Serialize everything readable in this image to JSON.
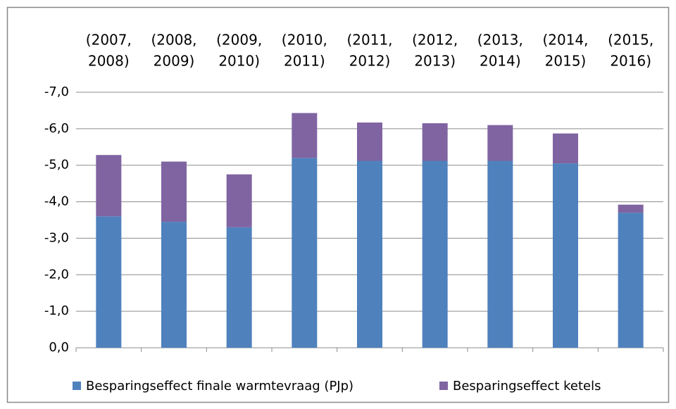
{
  "chart_data": {
    "type": "stacked-bar",
    "categories": [
      [
        "(2007,",
        "2008)"
      ],
      [
        "(2008,",
        "2009)"
      ],
      [
        "(2009,",
        "2010)"
      ],
      [
        "(2010,",
        "2011)"
      ],
      [
        "(2011,",
        "2012)"
      ],
      [
        "(2012,",
        "2013)"
      ],
      [
        "(2013,",
        "2014)"
      ],
      [
        "(2014,",
        "2015)"
      ],
      [
        "(2015,",
        "2016)"
      ]
    ],
    "series": [
      {
        "name": "Besparingseffect finale warmtevraag (PJp)",
        "color": "#4f81bd",
        "values": [
          -3.6,
          -3.45,
          -3.3,
          -5.2,
          -5.12,
          -5.12,
          -5.12,
          -5.05,
          -3.7
        ]
      },
      {
        "name": "Besparingseffect ketels",
        "color": "#8064a2",
        "values": [
          -1.68,
          -1.65,
          -1.45,
          -1.23,
          -1.05,
          -1.03,
          -0.98,
          -0.82,
          -0.22
        ]
      }
    ],
    "ylim": [
      0,
      -7
    ],
    "yticks": [
      {
        "value": 0,
        "label": "0,0"
      },
      {
        "value": -1,
        "label": "-1,0"
      },
      {
        "value": -2,
        "label": "-2,0"
      },
      {
        "value": -3,
        "label": "-3,0"
      },
      {
        "value": -4,
        "label": "-4,0"
      },
      {
        "value": -5,
        "label": "-5,0"
      },
      {
        "value": -6,
        "label": "-6,0"
      },
      {
        "value": -7,
        "label": "-7,0"
      }
    ],
    "grid": true,
    "legend": "bottom"
  }
}
